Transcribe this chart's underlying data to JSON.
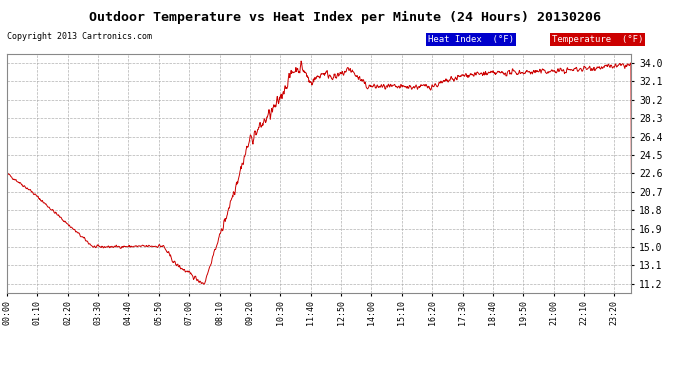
{
  "title": "Outdoor Temperature vs Heat Index per Minute (24 Hours) 20130206",
  "copyright": "Copyright 2013 Cartronics.com",
  "bg_color": "#ffffff",
  "plot_bg_color": "#ffffff",
  "line_color": "#cc0000",
  "grid_color": "#aaaaaa",
  "title_color": "#000000",
  "yticks": [
    11.2,
    13.1,
    15.0,
    16.9,
    18.8,
    20.7,
    22.6,
    24.5,
    26.4,
    28.3,
    30.2,
    32.1,
    34.0
  ],
  "ylim": [
    10.3,
    34.9
  ],
  "legend_heat_label": "Heat Index  (°F)",
  "legend_temp_label": "Temperature  (°F)",
  "legend_heat_bg": "#0000cc",
  "legend_temp_bg": "#cc0000",
  "xtick_interval": 70,
  "num_points": 1440
}
